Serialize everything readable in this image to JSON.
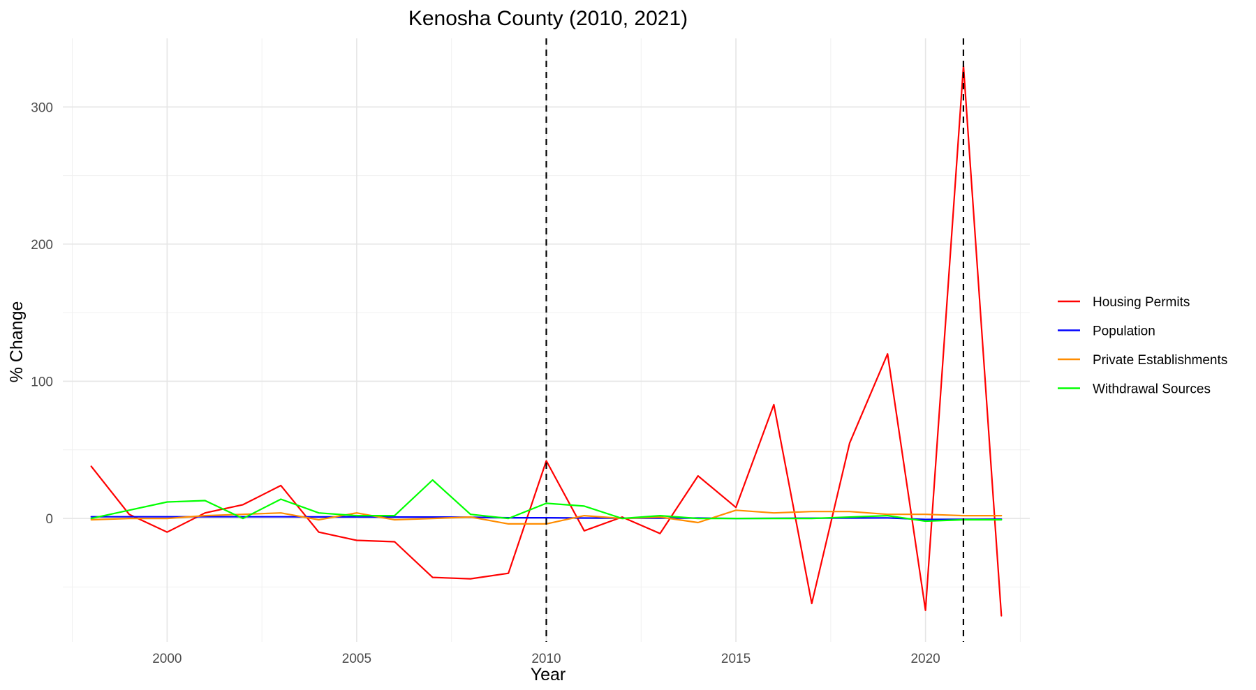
{
  "chart_data": {
    "type": "line",
    "title": "Kenosha County (2010, 2021)",
    "xlabel": "Year",
    "ylabel": "% Change",
    "xlim": [
      1997.25,
      2022.75
    ],
    "ylim": [
      -90,
      350
    ],
    "x_ticks": [
      2000,
      2005,
      2010,
      2015,
      2020
    ],
    "x_tick_labels": [
      "2000",
      "2005",
      "2010",
      "2015",
      "2020"
    ],
    "x_minor_ticks": [
      1997.5,
      2002.5,
      2007.5,
      2012.5,
      2017.5,
      2022.5
    ],
    "y_ticks": [
      0,
      100,
      200,
      300
    ],
    "y_tick_labels": [
      "0",
      "100",
      "200",
      "300"
    ],
    "y_minor_ticks": [
      -50,
      50,
      150,
      250
    ],
    "grid": true,
    "legend_position": "right",
    "vertical_lines": [
      {
        "x": 2010,
        "style": "dashed",
        "color": "#000000"
      },
      {
        "x": 2021,
        "style": "dashed",
        "color": "#000000"
      }
    ],
    "x": [
      1998,
      1999,
      2000,
      2001,
      2002,
      2003,
      2004,
      2005,
      2006,
      2007,
      2008,
      2009,
      2010,
      2011,
      2012,
      2013,
      2014,
      2015,
      2016,
      2017,
      2018,
      2019,
      2020,
      2021,
      2022
    ],
    "series": [
      {
        "name": "Housing Permits",
        "color": "#ff0000",
        "values": [
          38,
          3,
          -10,
          4,
          10,
          24,
          -10,
          -16,
          -17,
          -43,
          -44,
          -40,
          42,
          -9,
          1,
          -11,
          31,
          8,
          83,
          -62,
          55,
          120,
          -67,
          330,
          -71
        ]
      },
      {
        "name": "Population",
        "color": "#0000ff",
        "values": [
          1.2,
          1.2,
          1.2,
          1.2,
          1.2,
          1.2,
          1.1,
          1.1,
          1.0,
          1.0,
          0.9,
          0.5,
          0.5,
          0.3,
          0.2,
          0.2,
          0.3,
          0.0,
          0.1,
          0.2,
          0.3,
          0.4,
          -0.8,
          -0.7,
          -0.5
        ]
      },
      {
        "name": "Private Establishments",
        "color": "#ff8c00",
        "values": [
          -1,
          0,
          0,
          2,
          3,
          4,
          -1,
          4,
          -1,
          0,
          1,
          -4,
          -4,
          2,
          0,
          1,
          -3,
          6,
          4,
          5,
          5,
          3,
          3,
          2,
          2
        ]
      },
      {
        "name": "Withdrawal Sources",
        "color": "#00ff00",
        "values": [
          0,
          6,
          12,
          13,
          0,
          14,
          4,
          2,
          2,
          28,
          3,
          0,
          11,
          9,
          0,
          2,
          0,
          0,
          0,
          0,
          1,
          2,
          -2,
          -1,
          -1
        ]
      }
    ]
  }
}
